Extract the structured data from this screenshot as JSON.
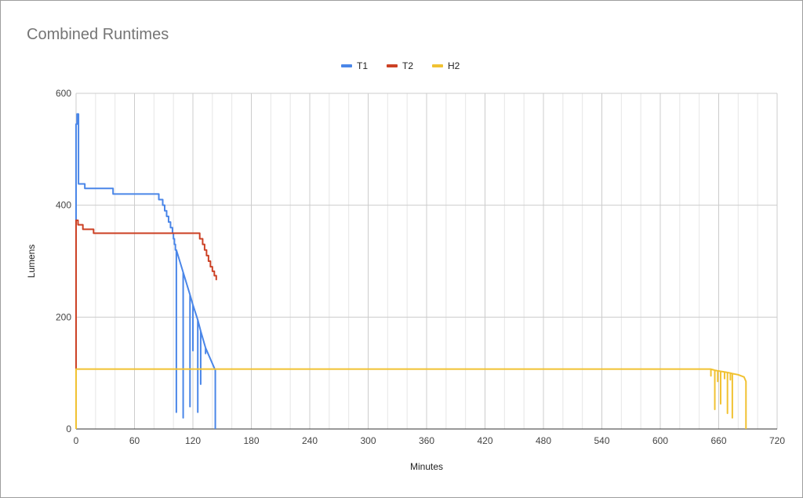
{
  "chart_data": {
    "type": "line",
    "title": "Combined Runtimes",
    "xlabel": "Minutes",
    "ylabel": "Lumens",
    "xlim": [
      0,
      720
    ],
    "ylim": [
      0,
      600
    ],
    "x_ticks": [
      0,
      60,
      120,
      180,
      240,
      300,
      360,
      420,
      480,
      540,
      600,
      660,
      720
    ],
    "y_ticks": [
      0,
      200,
      400,
      600
    ],
    "x_minor_step": 20,
    "grid": true,
    "legend_position": "top-center",
    "series": [
      {
        "name": "T1",
        "color": "#4a86e8",
        "points": [
          [
            0,
            0
          ],
          [
            0,
            545
          ],
          [
            1,
            545
          ],
          [
            1,
            563
          ],
          [
            2.5,
            563
          ],
          [
            2.5,
            438
          ],
          [
            9,
            438
          ],
          [
            9,
            430
          ],
          [
            38,
            430
          ],
          [
            38,
            420
          ],
          [
            85,
            420
          ],
          [
            85,
            410
          ],
          [
            89,
            410
          ],
          [
            89,
            400
          ],
          [
            91,
            400
          ],
          [
            91,
            390
          ],
          [
            93,
            390
          ],
          [
            93,
            380
          ],
          [
            95,
            380
          ],
          [
            95,
            370
          ],
          [
            97,
            370
          ],
          [
            97,
            360
          ],
          [
            99,
            360
          ],
          [
            99,
            350
          ],
          [
            100,
            350
          ],
          [
            100,
            340
          ],
          [
            101,
            340
          ],
          [
            101,
            330
          ],
          [
            102,
            330
          ],
          [
            102,
            320
          ],
          [
            103,
            320
          ],
          [
            103,
            30
          ],
          [
            103,
            320
          ],
          [
            110,
            280
          ],
          [
            110,
            20
          ],
          [
            110,
            280
          ],
          [
            117,
            240
          ],
          [
            117,
            40
          ],
          [
            117,
            240
          ],
          [
            120,
            222
          ],
          [
            120,
            140
          ],
          [
            120,
            222
          ],
          [
            125,
            195
          ],
          [
            125,
            30
          ],
          [
            125,
            195
          ],
          [
            128,
            175
          ],
          [
            128,
            80
          ],
          [
            128,
            175
          ],
          [
            133,
            145
          ],
          [
            133,
            135
          ],
          [
            133,
            145
          ],
          [
            143,
            105
          ],
          [
            143,
            0
          ]
        ]
      },
      {
        "name": "T2",
        "color": "#cc4125",
        "points": [
          [
            0,
            0
          ],
          [
            0,
            373
          ],
          [
            2,
            373
          ],
          [
            2,
            365
          ],
          [
            7,
            365
          ],
          [
            7,
            357
          ],
          [
            18,
            357
          ],
          [
            18,
            350
          ],
          [
            127,
            350
          ],
          [
            127,
            340
          ],
          [
            130,
            340
          ],
          [
            130,
            330
          ],
          [
            132,
            330
          ],
          [
            132,
            320
          ],
          [
            134,
            320
          ],
          [
            134,
            310
          ],
          [
            136,
            310
          ],
          [
            136,
            300
          ],
          [
            138,
            300
          ],
          [
            138,
            290
          ],
          [
            140,
            290
          ],
          [
            140,
            282
          ],
          [
            142,
            282
          ],
          [
            142,
            274
          ],
          [
            144,
            274
          ],
          [
            144,
            266
          ]
        ]
      },
      {
        "name": "H2",
        "color": "#f1c232",
        "points": [
          [
            0,
            0
          ],
          [
            0,
            107
          ],
          [
            652,
            107
          ],
          [
            652,
            95
          ],
          [
            652,
            107
          ],
          [
            654,
            106
          ],
          [
            656,
            105
          ],
          [
            656,
            35
          ],
          [
            656,
            105
          ],
          [
            659,
            104
          ],
          [
            659,
            85
          ],
          [
            659,
            104
          ],
          [
            662,
            103
          ],
          [
            662,
            45
          ],
          [
            662,
            103
          ],
          [
            666,
            102
          ],
          [
            666,
            90
          ],
          [
            666,
            102
          ],
          [
            669,
            101
          ],
          [
            669,
            28
          ],
          [
            669,
            101
          ],
          [
            672,
            100
          ],
          [
            672,
            88
          ],
          [
            672,
            100
          ],
          [
            674,
            99
          ],
          [
            674,
            20
          ],
          [
            674,
            99
          ],
          [
            680,
            97
          ],
          [
            686,
            93
          ],
          [
            688,
            85
          ],
          [
            688,
            0
          ]
        ]
      }
    ]
  }
}
